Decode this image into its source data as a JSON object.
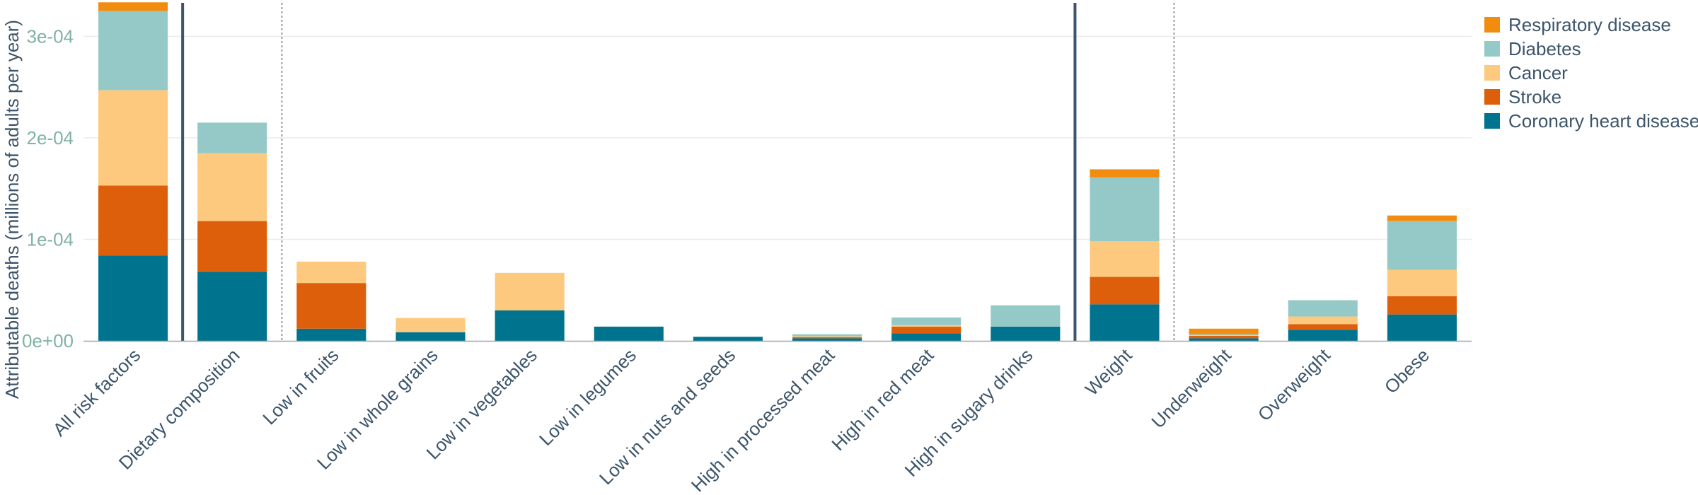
{
  "chart_data": {
    "type": "bar",
    "stacked": true,
    "title": "",
    "xlabel": "",
    "ylabel": "Attributable deaths (millions of adults per year)",
    "ylim": [
      0,
      0.000333
    ],
    "yticks": [
      {
        "value": 0,
        "label": "0e+00"
      },
      {
        "value": 0.0001,
        "label": "1e-04"
      },
      {
        "value": 0.0002,
        "label": "2e-04"
      },
      {
        "value": 0.0003,
        "label": "3e-04"
      }
    ],
    "grid": true,
    "legend_position": "right",
    "categories": [
      "All risk factors",
      "Dietary composition",
      "Low in fruits",
      "Low in whole grains",
      "Low in vegetables",
      "Low in legumes",
      "Low in nuts and seeds",
      "High in processed meat",
      "High in red meat",
      "High in sugary drinks",
      "Weight",
      "Underweight",
      "Overweight",
      "Obese"
    ],
    "group_separators_after": [
      0,
      9
    ],
    "dotted_separators_after": [
      1,
      10
    ],
    "series": [
      {
        "name": "Coronary heart disease",
        "color": "#00738f",
        "values": [
          8.4e-05,
          6.8e-05,
          1.2e-05,
          8.5e-06,
          3e-05,
          1.4e-05,
          4e-06,
          2.5e-06,
          7.5e-06,
          1.4e-05,
          3.6e-05,
          2.5e-06,
          1.1e-05,
          2.6e-05
        ]
      },
      {
        "name": "Stroke",
        "color": "#de5f0b",
        "values": [
          6.9e-05,
          5e-05,
          4.5e-05,
          0,
          0,
          0,
          0,
          1e-06,
          6.5e-06,
          0,
          2.7e-05,
          2.5e-06,
          5.5e-06,
          1.8e-05
        ]
      },
      {
        "name": "Cancer",
        "color": "#fcc97e",
        "values": [
          9.4e-05,
          6.7e-05,
          2.1e-05,
          1.4e-05,
          3.7e-05,
          0,
          0,
          1e-06,
          1.5e-06,
          0,
          3.5e-05,
          5e-07,
          7.5e-06,
          2.6e-05
        ]
      },
      {
        "name": "Diabetes",
        "color": "#95c9c7",
        "values": [
          7.8e-05,
          3e-05,
          0,
          0,
          0,
          0,
          0,
          2e-06,
          7.5e-06,
          2.1e-05,
          6.3e-05,
          1e-06,
          1.6e-05,
          4.8e-05
        ]
      },
      {
        "name": "Respiratory disease",
        "color": "#f28c0f",
        "values": [
          8.5e-06,
          0,
          0,
          0,
          0,
          0,
          0,
          0,
          0,
          0,
          8e-06,
          5.5e-06,
          0,
          5.5e-06
        ]
      }
    ]
  }
}
